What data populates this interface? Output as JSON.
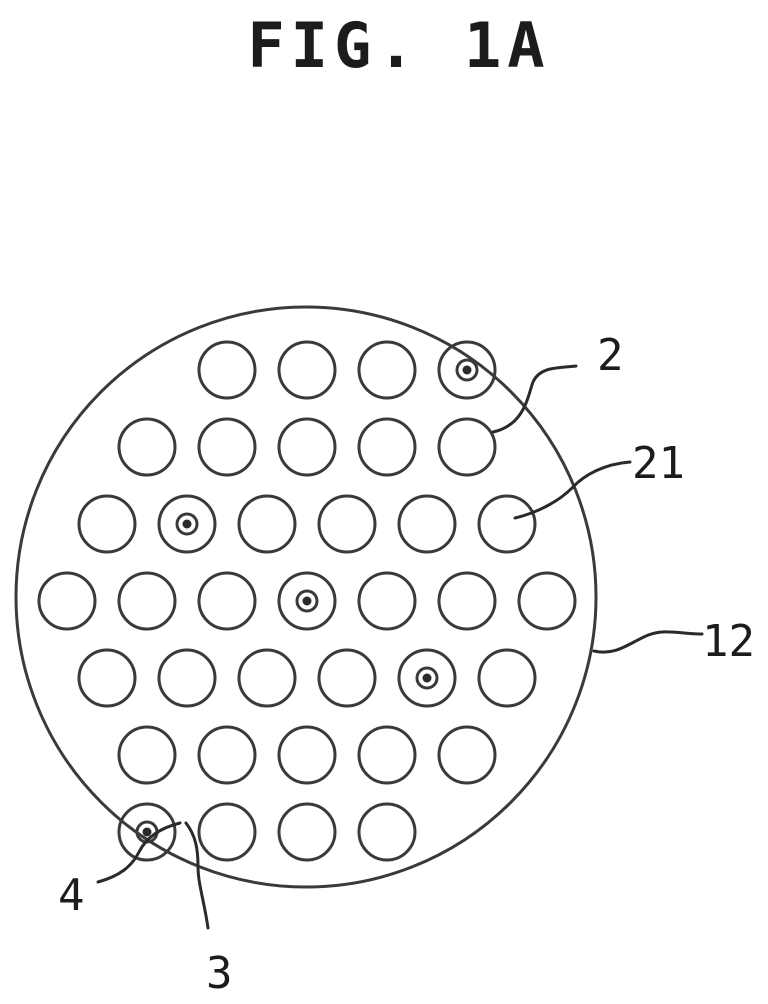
{
  "figure": {
    "title": "FIG. 1A"
  },
  "labels": {
    "tube": "2",
    "tube_interior": "21",
    "tube_sheet": "12",
    "rod": "4",
    "rod_core": "3"
  },
  "hole_grid": {
    "rows": [
      {
        "count": 4,
        "first_column": 2
      },
      {
        "count": 5,
        "first_column": 1
      },
      {
        "count": 6,
        "first_column": 0.5
      },
      {
        "count": 7,
        "first_column": 0
      },
      {
        "count": 6,
        "first_column": 0.5
      },
      {
        "count": 5,
        "first_column": 1
      },
      {
        "count": 4,
        "first_column": 1
      }
    ],
    "rod_holes": [
      {
        "row": 0,
        "index": 3
      },
      {
        "row": 2,
        "index": 1
      },
      {
        "row": 3,
        "index": 3
      },
      {
        "row": 4,
        "index": 4
      },
      {
        "row": 6,
        "index": 0
      }
    ]
  }
}
